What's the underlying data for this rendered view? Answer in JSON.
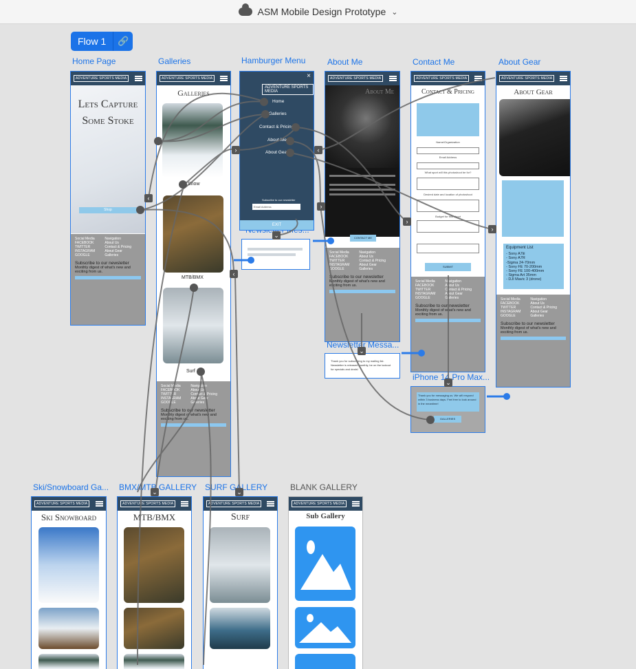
{
  "window": {
    "title": "ASM Mobile Design Prototype"
  },
  "flow": {
    "label": "Flow 1"
  },
  "artboards": {
    "home": {
      "label": "Home Page",
      "title_line1": "Lets Capture",
      "title_line2": "Some Stoke",
      "cta": "Shop"
    },
    "galleries": {
      "label": "Galleries",
      "title": "Galleries",
      "cap1": "Snow",
      "cap2": "MTB/BMX",
      "cap3": "Surf"
    },
    "menu": {
      "label": "Hamburger Menu",
      "items": [
        "Home",
        "Galleries",
        "Contact & Pricing",
        "About Me",
        "About Gear"
      ],
      "subscribe": "Subscribe to our newsletter",
      "email": "Email Address",
      "exit": "EXIT"
    },
    "about_me": {
      "label": "About Me",
      "title": "About Me",
      "cta": "CONTACT ME"
    },
    "contact": {
      "label": "Contact Me",
      "title": "Contact & Pricing",
      "fields": [
        "Name/Organization",
        "Email Address",
        "What sport will this photoshoot be for?",
        "Desired date and location of photoshoot",
        "Budget for this shoot"
      ],
      "submit": "SUBMIT"
    },
    "about_gear": {
      "label": "About Gear",
      "title": "About Gear",
      "equipment_title": "Equipment List",
      "equipment": [
        "- Sony A7iii",
        "- Sony A7R",
        "-Sigma 24-70mm",
        "- Sony FE 70-200mm",
        "- Sony FE 100-400mm",
        "- Sigma Art 35mm",
        "- DJI Mavic 3 (drone)"
      ]
    },
    "newsletter1": {
      "label": "Newsletter Mes..."
    },
    "newsletter2": {
      "label": "Newsletter Messa...",
      "text": "Thank you for subscribing to my mailing list. Newsletter is released monthly, be on the lookout for specials and deals!"
    },
    "iphone": {
      "label": "iPhone 14 Pro Max...",
      "text": "Thank you for messaging us. We will respond within 3 business days. Feel free to look around in the meantime!",
      "btn": "GALLERIES"
    },
    "ski": {
      "label": "Ski/Snowboard Ga...",
      "title": "Ski Snowboard"
    },
    "bmx": {
      "label": "BMX/MTB GALLERY",
      "title": "MTB/BMX"
    },
    "surf": {
      "label": "SURF GALLERY",
      "title": "Surf"
    },
    "blank": {
      "label": "BLANK GALLERY",
      "title": "Sub Gallery"
    }
  },
  "footer": {
    "social_title": "Social Media",
    "nav_title": "Navigation",
    "social": [
      "FACEBOOK",
      "TWITTER",
      "INSTAGRAM",
      "GOOGLE"
    ],
    "nav": [
      "About Us",
      "Contact & Pricing",
      "About Gear",
      "Galleries"
    ],
    "subscribe": "Subscribe to our newsletter",
    "subtext": "Monthly digest of what's new and exciting from us.",
    "join": "JOIN"
  },
  "logo": "ADVENTURE SPORTS MEDIA"
}
